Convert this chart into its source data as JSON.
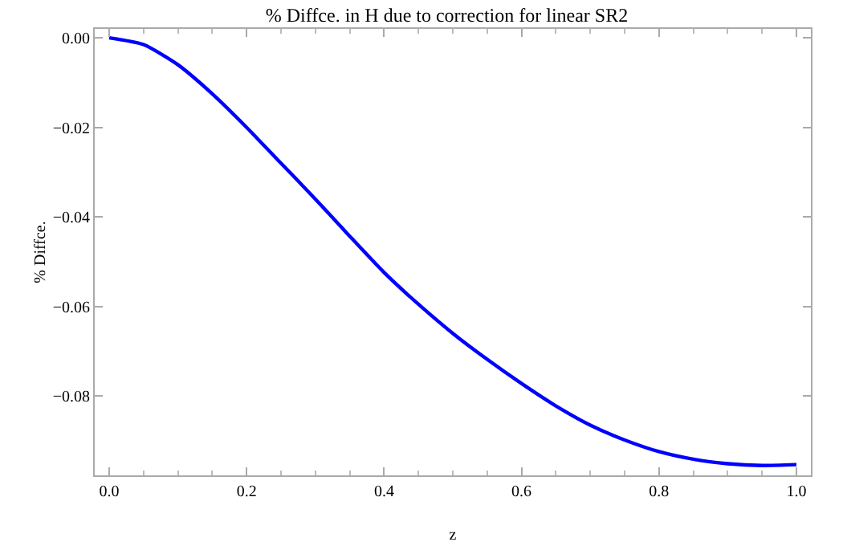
{
  "chart_data": {
    "type": "line",
    "title": "% Diffce. in H due to correction for linear SR2",
    "xlabel": "z",
    "ylabel": "% Diffce.",
    "x": [
      0,
      0.05,
      0.1,
      0.15,
      0.2,
      0.25,
      0.3,
      0.35,
      0.4,
      0.45,
      0.5,
      0.55,
      0.6,
      0.65,
      0.7,
      0.75,
      0.8,
      0.85,
      0.9,
      0.95,
      1
    ],
    "series": [
      {
        "color": "#0000ff",
        "values": [
          0,
          -0.0015,
          -0.006,
          -0.0125,
          -0.02,
          -0.028,
          -0.036,
          -0.0443,
          -0.0524,
          -0.0595,
          -0.066,
          -0.0718,
          -0.0772,
          -0.0822,
          -0.0865,
          -0.0898,
          -0.0924,
          -0.0941,
          -0.0951,
          -0.0955,
          -0.0953
        ]
      }
    ],
    "xlim": [
      -0.021,
      1.021
    ],
    "ylim": [
      -0.0977,
      0.002
    ],
    "xticks": [
      {
        "value": 0,
        "label": "0.0"
      },
      0.2,
      0.4,
      0.6,
      0.8,
      {
        "value": 1,
        "label": "1.0"
      }
    ],
    "yticks": [
      {
        "value": 0,
        "label": "0.00"
      },
      -0.02,
      -0.04,
      -0.06,
      -0.08
    ],
    "grid": false,
    "marker": "none",
    "line_style": "solid"
  }
}
